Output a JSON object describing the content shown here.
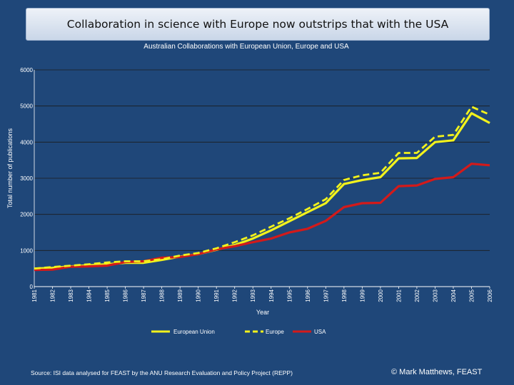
{
  "slide": {
    "title": "Collaboration in science with Europe now outstrips that with the USA",
    "source": "Source: ISI data analysed for FEAST by the ANU Research Evaluation and Policy Project (REPP)",
    "copyright": "© Mark Matthews, FEAST"
  },
  "chart_data": {
    "type": "line",
    "title": "Australian Collaborations with European Union, Europe and USA",
    "xlabel": "Year",
    "ylabel": "Total number of publications",
    "ylim": [
      0,
      6000
    ],
    "yticks": [
      0,
      1000,
      2000,
      3000,
      4000,
      5000,
      6000
    ],
    "grid": true,
    "legend_position": "bottom",
    "categories": [
      "1981",
      "1982",
      "1983",
      "1984",
      "1985",
      "1986",
      "1987",
      "1988",
      "1989",
      "1990",
      "1991",
      "1992",
      "1993",
      "1994",
      "1995",
      "1996",
      "1997",
      "1998",
      "1999",
      "2000",
      "2001",
      "2002",
      "2003",
      "2004",
      "2005",
      "2006"
    ],
    "series": [
      {
        "name": "European Union",
        "style": "solid",
        "color": "#f2f21c",
        "values": [
          500,
          520,
          560,
          590,
          620,
          660,
          660,
          740,
          830,
          900,
          1020,
          1150,
          1330,
          1560,
          1810,
          2060,
          2310,
          2840,
          2950,
          3030,
          3550,
          3560,
          4000,
          4050,
          4800,
          4530
        ]
      },
      {
        "name": "Europe",
        "style": "dashed",
        "color": "#f2f21c",
        "values": [
          500,
          540,
          580,
          620,
          670,
          700,
          700,
          760,
          860,
          930,
          1060,
          1230,
          1420,
          1660,
          1890,
          2150,
          2420,
          2950,
          3080,
          3150,
          3700,
          3700,
          4150,
          4200,
          4980,
          4760
        ]
      },
      {
        "name": "USA",
        "style": "solid",
        "color": "#d31a1a",
        "values": [
          460,
          470,
          550,
          560,
          580,
          680,
          700,
          800,
          820,
          900,
          1030,
          1120,
          1230,
          1330,
          1500,
          1600,
          1820,
          2200,
          2310,
          2320,
          2780,
          2800,
          2980,
          3030,
          3400,
          3360
        ]
      }
    ]
  }
}
